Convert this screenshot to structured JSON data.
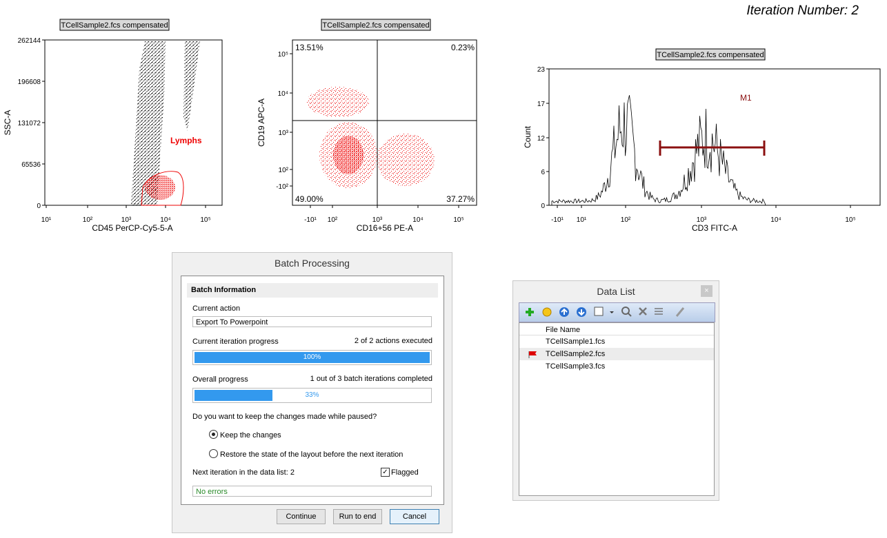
{
  "header": {
    "iteration": "Iteration Number: 2"
  },
  "plots": [
    {
      "tag": "TCellSample2.fcs compensated",
      "x_label": "CD45 PerCP-Cy5-5-A",
      "y_label": "SSC-A",
      "x_ticks": [
        "10¹",
        "10²",
        "10³",
        "10⁴",
        "10⁵"
      ],
      "y_ticks": [
        "262144",
        "196608",
        "131072",
        "65536",
        "0"
      ],
      "gate": "Lymphs"
    },
    {
      "tag": "TCellSample2.fcs compensated",
      "x_label": "CD16+56 PE-A",
      "y_label": "CD19 APC-A",
      "x_ticks": [
        "-10¹",
        "10²",
        "10³",
        "10⁴",
        "10⁵"
      ],
      "y_ticks": [
        "10⁵",
        "10⁴",
        "10³",
        "10²",
        "-10²"
      ],
      "quadrants": [
        "13.51%",
        "0.23%",
        "49.00%",
        "37.27%"
      ]
    },
    {
      "tag": "TCellSample2.fcs compensated",
      "x_label": "CD3 FITC-A",
      "y_label": "Count",
      "x_ticks": [
        "-10¹",
        "10¹",
        "10²",
        "10³",
        "10⁴",
        "10⁵"
      ],
      "y_ticks": [
        "23",
        "17",
        "12",
        "6",
        "0"
      ],
      "marker": "M1"
    }
  ],
  "batch": {
    "title": "Batch Processing",
    "section": "Batch Information",
    "current_action_label": "Current action",
    "current_action": "Export To Powerpoint",
    "iteration_label": "Current iteration progress",
    "iteration_status": "2 of 2 actions executed",
    "iteration_progress": {
      "value": 100,
      "label": "100%"
    },
    "overall_label": "Overall progress",
    "overall_status": "1 out of 3 batch iterations completed",
    "overall_progress": {
      "value": 33,
      "label": "33%"
    },
    "question": "Do you want to keep the changes made while paused?",
    "options": [
      "Keep the changes",
      "Restore the state of the layout before the next iteration"
    ],
    "next_iteration": "Next iteration in the data list: 2",
    "flagged": "Flagged",
    "errors": "No errors",
    "buttons": [
      "Continue",
      "Run to end",
      "Cancel"
    ]
  },
  "data_list": {
    "title": "Data List",
    "column": "File Name",
    "files": [
      "TCellSample1.fcs",
      "TCellSample2.fcs",
      "TCellSample3.fcs"
    ]
  }
}
